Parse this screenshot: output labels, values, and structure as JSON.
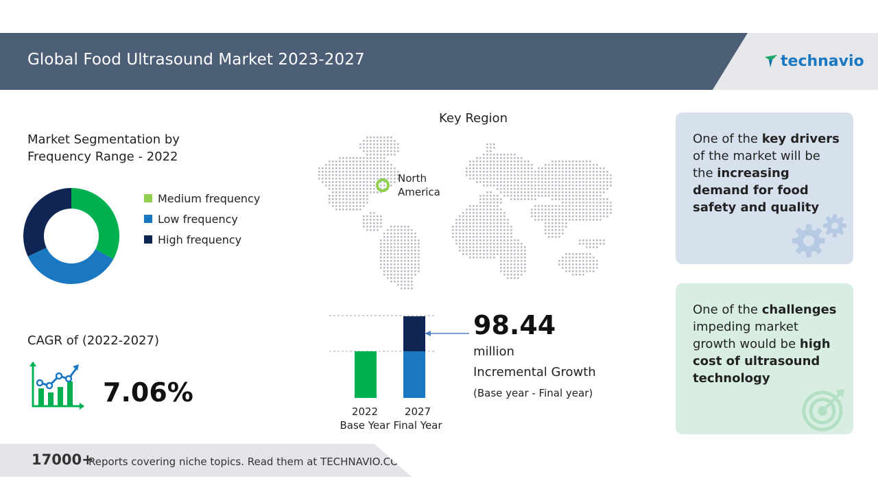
{
  "header": {
    "title": "Global Food Ultrasound Market 2023-2027",
    "logo_text": "technavio"
  },
  "segmentation": {
    "title": "Market Segmentation by Frequency Range - 2022",
    "legend": [
      {
        "label": "Medium frequency",
        "color": "#8fd14f"
      },
      {
        "label": "Low frequency",
        "color": "#1a78c2"
      },
      {
        "label": "High frequency",
        "color": "#0f2554"
      }
    ]
  },
  "cagr": {
    "label": "CAGR of (2022-2027)",
    "value": "7.06%",
    "icon": "growth-chart-icon"
  },
  "key_region": {
    "title": "Key Region",
    "region": "North America",
    "icon": "world-map"
  },
  "growth": {
    "value": "98.44",
    "unit": "million",
    "label": "Incremental Growth",
    "note": "(Base year - Final year)",
    "bars": [
      {
        "year": "2022",
        "label": "Base Year"
      },
      {
        "year": "2027",
        "label": "Final Year"
      }
    ]
  },
  "drivers": {
    "pre": "One of the ",
    "bold1": "key drivers",
    "mid": " of the market will be the ",
    "bold2": "increasing demand for food safety and quality",
    "icon": "gears-icon"
  },
  "challenges": {
    "pre": "One of the ",
    "bold1": "challenges",
    "mid": " impeding market growth would be ",
    "bold2": "high cost of ultrasound technology",
    "icon": "target-icon"
  },
  "footer": {
    "count": "17000+",
    "text": "Reports covering niche topics. Read them at TECHNAVIO.COM"
  },
  "colors": {
    "header": "#4d5e77",
    "medium": "#00b050",
    "low": "#1a78c2",
    "high": "#0f2554",
    "arrow": "#4d7fc0"
  },
  "chart_data": [
    {
      "type": "pie",
      "title": "Market Segmentation by Frequency Range - 2022",
      "categories": [
        "Medium frequency",
        "Low frequency",
        "High frequency"
      ],
      "values": [
        33,
        35,
        32
      ],
      "colors": [
        "#00b050",
        "#1a78c2",
        "#0f2554"
      ]
    },
    {
      "type": "bar",
      "categories": [
        "2022",
        "2027"
      ],
      "series": [
        {
          "values": [
            100,
            100
          ],
          "colors": [
            "#00b050",
            "#1a78c2"
          ]
        },
        {
          "values": [
            0,
            75
          ],
          "colors": [
            "#0f2554",
            "#0f2554"
          ]
        }
      ],
      "annotation": "98.44 million Incremental Growth"
    }
  ]
}
